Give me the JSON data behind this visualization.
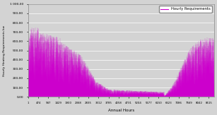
{
  "title": "Hourly Requirements",
  "xlabel": "Annual Hours",
  "ylabel": "Hourly Heating Requirements kw",
  "xlim": [
    1,
    8760
  ],
  "ylim": [
    0,
    1000
  ],
  "yticks": [
    0,
    100,
    200,
    300,
    400,
    500,
    600,
    700,
    800,
    900,
    1000
  ],
  "ytick_labels": [
    "0,00",
    "100,00",
    "200,00",
    "300,00",
    "400,00",
    "500,00",
    "600,00",
    "700,00",
    "800,00",
    "900,00",
    "1 000,00"
  ],
  "xticks": [
    1,
    474,
    947,
    1429,
    1900,
    2368,
    2835,
    3312,
    3785,
    4258,
    4731,
    5204,
    5677,
    6150,
    6623,
    7086,
    7569,
    8042,
    8515
  ],
  "line_color": "#CC00CC",
  "legend_loc": "upper right",
  "bg_color": "#D3D3D3",
  "seed": 12345
}
